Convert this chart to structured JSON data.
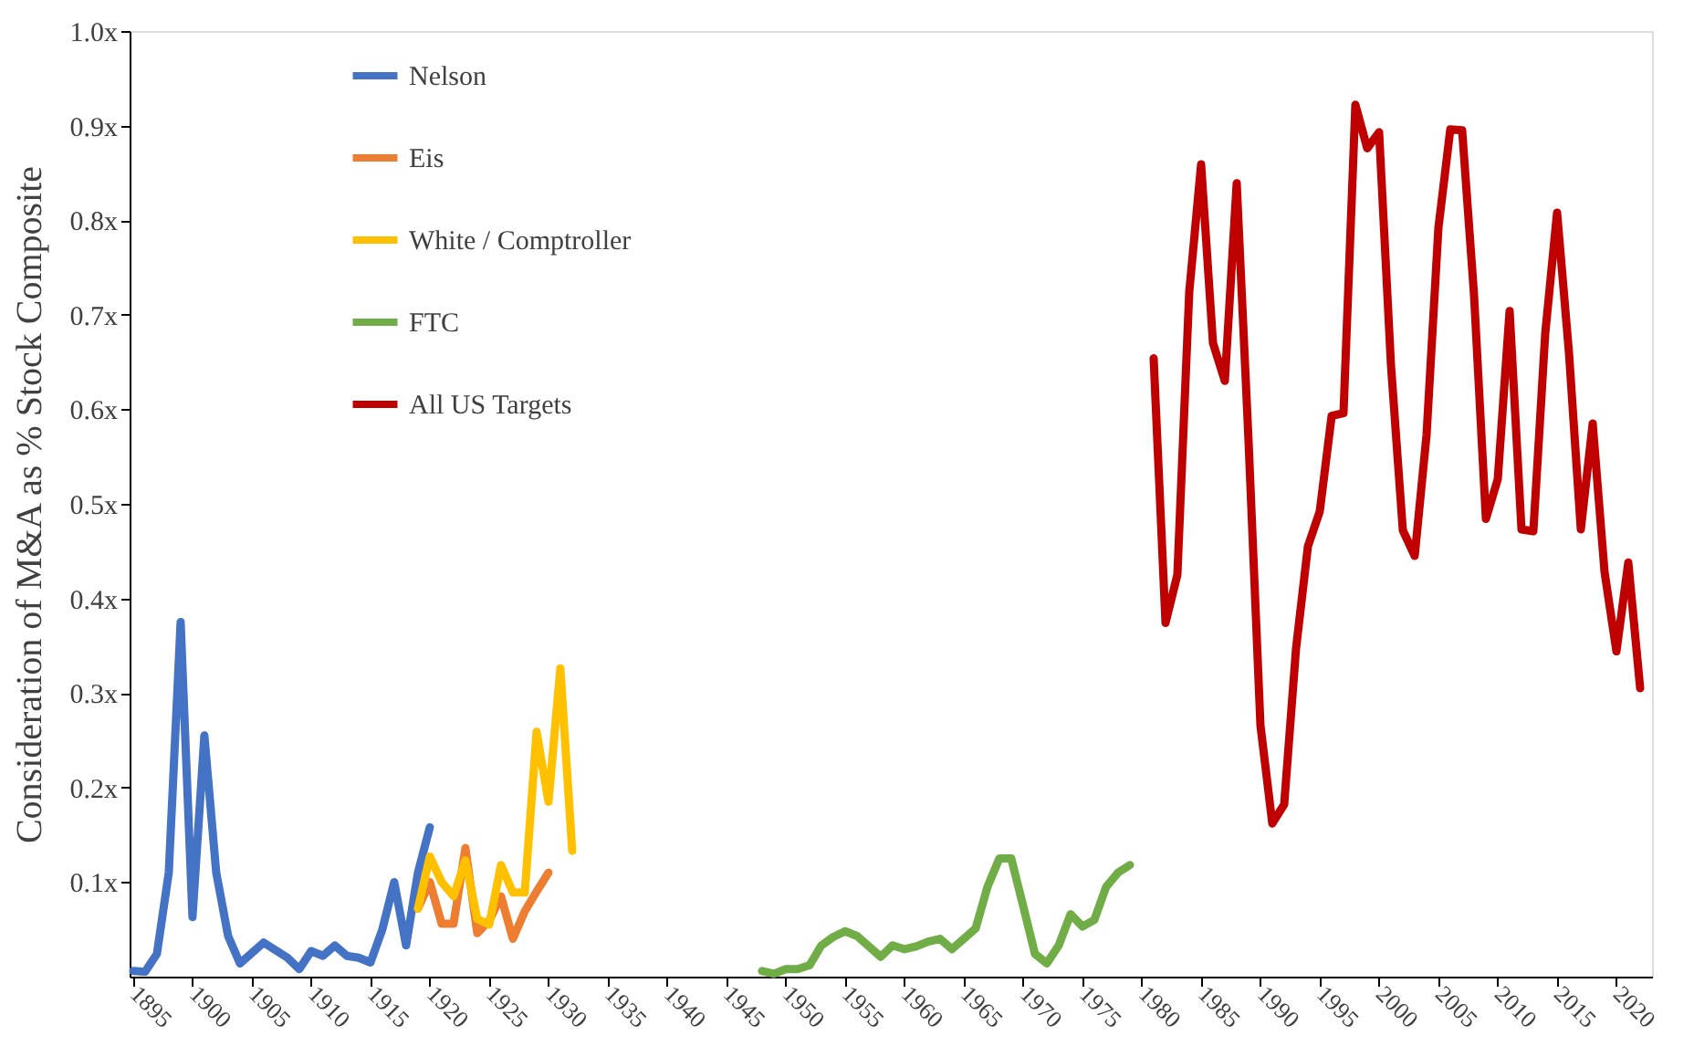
{
  "chart_data": {
    "type": "line",
    "ylabel": "Consideration  of M&A as % Stock Composite",
    "xlim": [
      1894.7,
      2023
    ],
    "xticks": [
      1895,
      1900,
      1905,
      1910,
      1915,
      1920,
      1925,
      1930,
      1935,
      1940,
      1945,
      1950,
      1955,
      1960,
      1965,
      1970,
      1975,
      1980,
      1985,
      1990,
      1995,
      2000,
      2005,
      2010,
      2015,
      2020
    ],
    "ylim": [
      0,
      1.0
    ],
    "yticks": [
      {
        "value": 0.1,
        "label": "0.1x"
      },
      {
        "value": 0.2,
        "label": "0.2x"
      },
      {
        "value": 0.3,
        "label": "0.3x"
      },
      {
        "value": 0.4,
        "label": "0.4x"
      },
      {
        "value": 0.5,
        "label": "0.5x"
      },
      {
        "value": 0.6,
        "label": "0.6x"
      },
      {
        "value": 0.7,
        "label": "0.7x"
      },
      {
        "value": 0.8,
        "label": "0.8x"
      },
      {
        "value": 0.9,
        "label": "0.9x"
      },
      {
        "value": 1.0,
        "label": "1.0x"
      }
    ],
    "grid": false,
    "legend": "top left",
    "marker": "none",
    "line_style": "solid",
    "series": [
      {
        "name": "Nelson",
        "color": "#4472c4",
        "x": [
          1895,
          1896,
          1897,
          1898,
          1899,
          1900,
          1901,
          1902,
          1903,
          1904,
          1905,
          1906,
          1907,
          1908,
          1909,
          1910,
          1911,
          1912,
          1913,
          1914,
          1915,
          1916,
          1917,
          1918,
          1919,
          1920
        ],
        "values": [
          0.006,
          0.005,
          0.024,
          0.11,
          0.375,
          0.063,
          0.255,
          0.11,
          0.043,
          0.014,
          0.025,
          0.036,
          0.028,
          0.02,
          0.008,
          0.027,
          0.022,
          0.033,
          0.022,
          0.02,
          0.015,
          0.05,
          0.1,
          0.033,
          0.11,
          0.158
        ]
      },
      {
        "name": "Eis",
        "color": "#ed7d31",
        "x": [
          1919,
          1920,
          1921,
          1922,
          1923,
          1924,
          1925,
          1926,
          1927,
          1928,
          1929,
          1930
        ],
        "values": [
          0.072,
          0.1,
          0.056,
          0.056,
          0.136,
          0.046,
          0.059,
          0.085,
          0.04,
          0.069,
          0.09,
          0.11
        ]
      },
      {
        "name": "White / Comptroller",
        "color": "#ffc000",
        "x": [
          1919,
          1920,
          1921,
          1922,
          1923,
          1924,
          1925,
          1926,
          1927,
          1928,
          1929,
          1930,
          1931,
          1932
        ],
        "values": [
          0.072,
          0.127,
          0.1,
          0.085,
          0.123,
          0.061,
          0.055,
          0.118,
          0.089,
          0.089,
          0.259,
          0.185,
          0.326,
          0.133
        ]
      },
      {
        "name": "FTC",
        "color": "#70ad47",
        "x": [
          1948,
          1949,
          1950,
          1951,
          1952,
          1953,
          1954,
          1955,
          1956,
          1957,
          1958,
          1959,
          1960,
          1961,
          1962,
          1963,
          1964,
          1965,
          1966,
          1967,
          1968,
          1969,
          1970,
          1971,
          1972,
          1973,
          1974,
          1975,
          1976,
          1977,
          1978,
          1979
        ],
        "values": [
          0.006,
          0.003,
          0.008,
          0.008,
          0.012,
          0.033,
          0.042,
          0.048,
          0.043,
          0.032,
          0.021,
          0.033,
          0.029,
          0.032,
          0.037,
          0.04,
          0.029,
          0.04,
          0.051,
          0.095,
          0.125,
          0.125,
          0.075,
          0.024,
          0.014,
          0.033,
          0.066,
          0.053,
          0.06,
          0.095,
          0.11,
          0.118
        ]
      },
      {
        "name": "All US Targets",
        "color": "#c00000",
        "x": [
          1981,
          1982,
          1983,
          1984,
          1985,
          1986,
          1987,
          1988,
          1989,
          1990,
          1991,
          1992,
          1993,
          1994,
          1995,
          1996,
          1997,
          1998,
          1999,
          2000,
          2001,
          2002,
          2003,
          2004,
          2005,
          2006,
          2007,
          2008,
          2009,
          2010,
          2011,
          2012,
          2013,
          2014,
          2015,
          2016,
          2017,
          2018,
          2019,
          2020,
          2021,
          2022
        ],
        "values": [
          0.654,
          0.374,
          0.425,
          0.724,
          0.859,
          0.67,
          0.63,
          0.839,
          0.566,
          0.266,
          0.162,
          0.182,
          0.347,
          0.455,
          0.492,
          0.593,
          0.596,
          0.922,
          0.876,
          0.893,
          0.647,
          0.472,
          0.445,
          0.573,
          0.792,
          0.896,
          0.895,
          0.721,
          0.484,
          0.526,
          0.704,
          0.473,
          0.471,
          0.68,
          0.808,
          0.66,
          0.473,
          0.585,
          0.428,
          0.344,
          0.438,
          0.305
        ]
      }
    ]
  }
}
